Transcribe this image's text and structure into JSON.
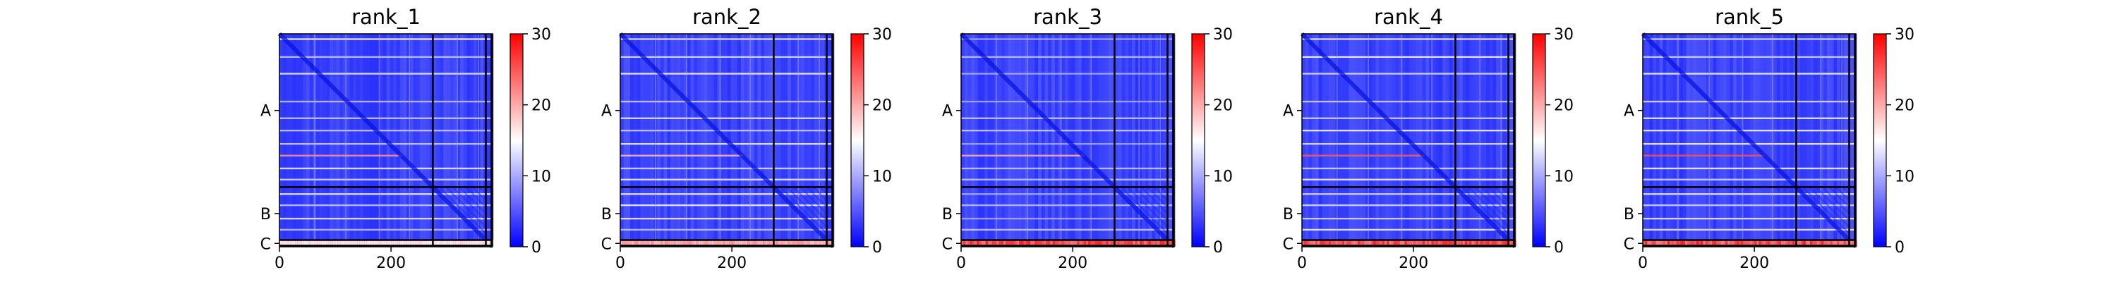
{
  "chart_data": [
    {
      "type": "heatmap",
      "title": "rank_1",
      "x_ticks": [
        "0",
        "200"
      ],
      "y_tick_labels": [
        "A",
        "B",
        "C"
      ],
      "chain_boundaries": [
        275,
        370,
        380
      ],
      "colorbar": {
        "range": [
          0,
          30
        ],
        "ticks": [
          "0",
          "10",
          "20",
          "30"
        ],
        "colormap": "bwr"
      },
      "grid": false,
      "bottom_red_band_level": 0.15,
      "white_stripe_strength": 0.75,
      "red_stripe_strength": 0.45
    },
    {
      "type": "heatmap",
      "title": "rank_2",
      "x_ticks": [
        "0",
        "200"
      ],
      "y_tick_labels": [
        "A",
        "B",
        "C"
      ],
      "chain_boundaries": [
        275,
        370,
        380
      ],
      "colorbar": {
        "range": [
          0,
          30
        ],
        "ticks": [
          "0",
          "10",
          "20",
          "30"
        ],
        "colormap": "bwr"
      },
      "grid": false,
      "bottom_red_band_level": 0.45,
      "white_stripe_strength": 0.8,
      "red_stripe_strength": 0.3
    },
    {
      "type": "heatmap",
      "title": "rank_3",
      "x_ticks": [
        "0",
        "200"
      ],
      "y_tick_labels": [
        "A",
        "B",
        "C"
      ],
      "chain_boundaries": [
        275,
        370,
        380
      ],
      "colorbar": {
        "range": [
          0,
          30
        ],
        "ticks": [
          "0",
          "10",
          "20",
          "30"
        ],
        "colormap": "bwr"
      },
      "grid": false,
      "bottom_red_band_level": 0.9,
      "white_stripe_strength": 0.6,
      "red_stripe_strength": 0.35
    },
    {
      "type": "heatmap",
      "title": "rank_4",
      "x_ticks": [
        "0",
        "200"
      ],
      "y_tick_labels": [
        "A",
        "B",
        "C"
      ],
      "chain_boundaries": [
        275,
        370,
        380
      ],
      "colorbar": {
        "range": [
          0,
          30
        ],
        "ticks": [
          "0",
          "10",
          "20",
          "30"
        ],
        "colormap": "bwr"
      },
      "grid": false,
      "bottom_red_band_level": 0.9,
      "white_stripe_strength": 0.8,
      "red_stripe_strength": 0.65
    },
    {
      "type": "heatmap",
      "title": "rank_5",
      "x_ticks": [
        "0",
        "200"
      ],
      "y_tick_labels": [
        "A",
        "B",
        "C"
      ],
      "chain_boundaries": [
        275,
        370,
        380
      ],
      "colorbar": {
        "range": [
          0,
          30
        ],
        "ticks": [
          "0",
          "10",
          "20",
          "30"
        ],
        "colormap": "bwr"
      },
      "grid": false,
      "bottom_red_band_level": 0.9,
      "white_stripe_strength": 0.85,
      "red_stripe_strength": 0.7
    }
  ]
}
